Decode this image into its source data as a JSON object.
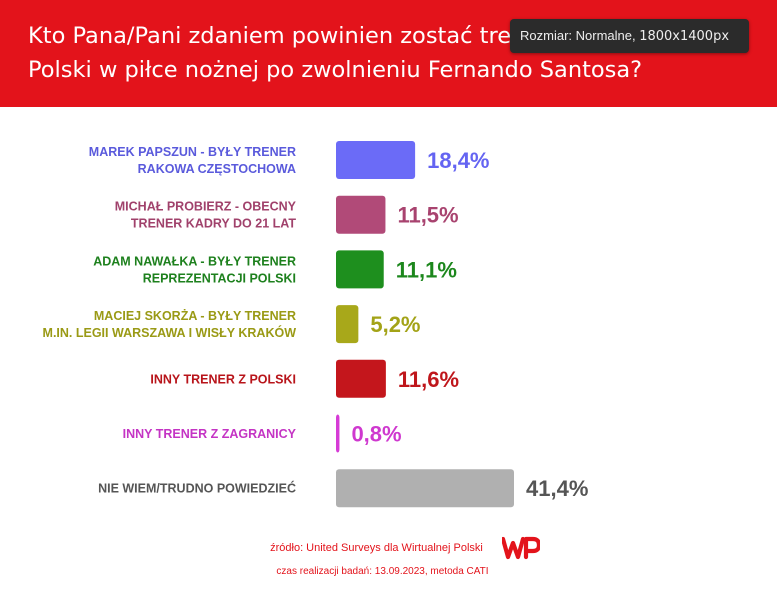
{
  "header": {
    "title_line1": "Kto Pana/Pani zdaniem powinien zostać trenerem reprezentacji",
    "title_line2": "Polski w piłce nożnej po zwolnieniu Fernando Santosa?"
  },
  "tooltip": {
    "label": "Rozmiar: Normalne, ",
    "value": "1800x1400px"
  },
  "chart_data": {
    "type": "bar",
    "orientation": "horizontal",
    "title": "Kto Pana/Pani zdaniem powinien zostać trenerem reprezentacji Polski w piłce nożnej po zwolnieniu Fernando Santosa?",
    "unit": "%",
    "categories": [
      [
        "MAREK PAPSZUN - BYŁY TRENER",
        "RAKOWA CZĘSTOCHOWA"
      ],
      [
        "MICHAŁ PROBIERZ - OBECNY",
        "TRENER KADRY DO 21 LAT"
      ],
      [
        "ADAM NAWAŁKA - BYŁY TRENER",
        "REPREZENTACJI POLSKI"
      ],
      [
        "MACIEJ SKORŻA - BYŁY TRENER",
        "M.IN. LEGII WARSZAWA I WISŁY KRAKÓW"
      ],
      [
        "INNY TRENER Z POLSKI"
      ],
      [
        "INNY TRENER Z ZAGRANICY"
      ],
      [
        "NIE WIEM/TRUDNO POWIEDZIEĆ"
      ]
    ],
    "values": [
      18.4,
      11.5,
      11.1,
      5.2,
      11.6,
      0.8,
      41.4
    ],
    "value_labels": [
      "18,4%",
      "11,5%",
      "11,1%",
      "5,2%",
      "11,6%",
      "0,8%",
      "41,4%"
    ],
    "colors": [
      "#6b6bf7",
      "#b14a78",
      "#1e8f1e",
      "#a8a81a",
      "#c4161c",
      "#d63bd6",
      "#b0b0b0"
    ],
    "label_colors": [
      "#5a5adc",
      "#a0416b",
      "#1d801d",
      "#9a9a15",
      "#b8141a",
      "#c434c4",
      "#555555"
    ],
    "value_label_colors": [
      "#6464f2",
      "#a8436f",
      "#1c871c",
      "#a3a317",
      "#bf161b",
      "#cf38cf",
      "#555555"
    ],
    "grid": false,
    "legend": "none"
  },
  "source": {
    "line1": "źródło: United Surveys dla Wirtualnej Polski",
    "line2": "czas realizacji badań: 13.09.2023, metoda CATI",
    "logo_text": "WP"
  }
}
